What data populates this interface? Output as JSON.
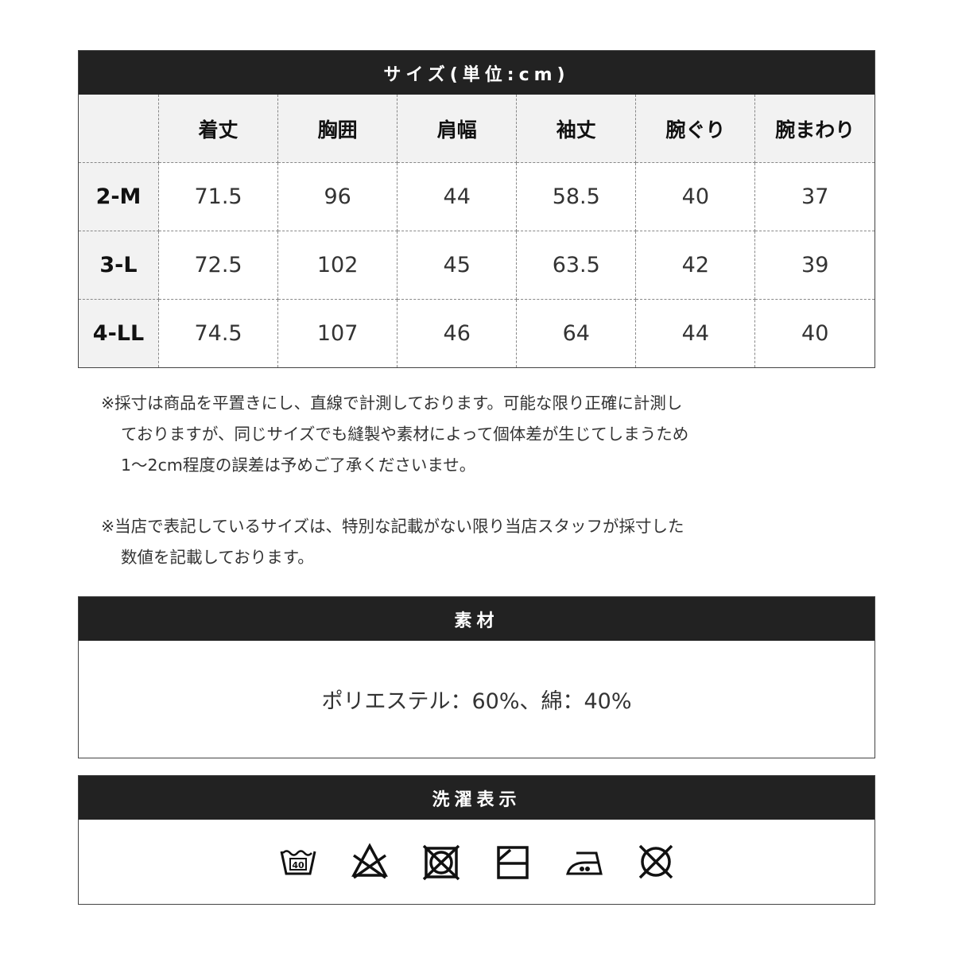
{
  "size_table": {
    "title": "サイズ(単位:cm)",
    "columns": [
      "",
      "着丈",
      "胸囲",
      "肩幅",
      "袖丈",
      "腕ぐり",
      "腕まわり"
    ],
    "rows": [
      [
        "2-M",
        "71.5",
        "96",
        "44",
        "58.5",
        "40",
        "37"
      ],
      [
        "3-L",
        "72.5",
        "102",
        "45",
        "63.5",
        "42",
        "39"
      ],
      [
        "4-LL",
        "74.5",
        "107",
        "46",
        "64",
        "44",
        "40"
      ]
    ]
  },
  "notes": [
    [
      "※採寸は商品を平置きにし、直線で計測しております。可能な限り正確に計測し",
      "ておりますが、同じサイズでも縫製や素材によって個体差が生じてしまうため",
      "1〜2cm程度の誤差は予めご了承くださいませ。"
    ],
    [
      "※当店で表記しているサイズは、特別な記載がない限り当店スタッフが採寸した",
      "数値を記載しております。"
    ]
  ],
  "material": {
    "title": "素材",
    "text": "ポリエステル：60%、綿：40%"
  },
  "care": {
    "title": "洗濯表示",
    "wash_temp": "40",
    "icons": [
      "wash-40-icon",
      "no-bleach-icon",
      "no-tumble-dry-icon",
      "line-dry-shade-icon",
      "iron-medium-icon",
      "no-dry-clean-icon"
    ]
  }
}
